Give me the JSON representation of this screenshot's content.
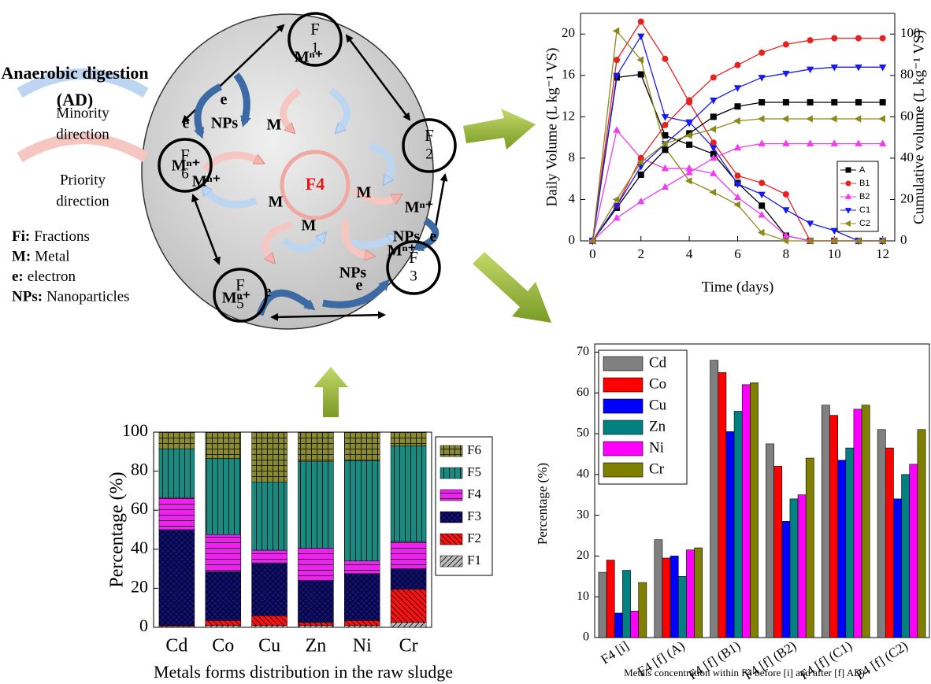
{
  "chart_data": [
    {
      "type": "line",
      "xlabel": "Time (days)",
      "ylabel": "Daily Volume (L kg⁻¹ VS)",
      "y2label": "Cumulative volume (L kg⁻¹ VS)",
      "x": [
        0,
        1,
        2,
        3,
        4,
        5,
        6,
        7,
        8,
        9,
        10,
        11,
        12
      ],
      "xlim": [
        -0.5,
        12.5
      ],
      "xticks": [
        0,
        2,
        4,
        6,
        8,
        10,
        12
      ],
      "ylim": [
        0,
        22
      ],
      "yticks": [
        0,
        4,
        8,
        12,
        16,
        20
      ],
      "y2lim": [
        0,
        110
      ],
      "y2ticks": [
        0,
        20,
        40,
        60,
        80,
        100
      ],
      "series": [
        {
          "name": "A",
          "color": "#000000",
          "marker": "square",
          "values": [
            0,
            15.8,
            16.1,
            10.2,
            9.3,
            8.4,
            5.6,
            3.4,
            0.5,
            0,
            0,
            0,
            0
          ]
        },
        {
          "name": "B1",
          "color": "#e8201e",
          "marker": "circle",
          "values": [
            0,
            17.5,
            21.2,
            17.6,
            13.4,
            9.5,
            6.3,
            5.6,
            4.5,
            0,
            0,
            0,
            0
          ]
        },
        {
          "name": "B2",
          "color": "#f03cf0",
          "marker": "triangle-up",
          "values": [
            0,
            10.7,
            8,
            7,
            7,
            6.5,
            4.2,
            2.5,
            0.5,
            0,
            0,
            0,
            0
          ]
        },
        {
          "name": "C1",
          "color": "#1a1aee",
          "marker": "triangle-down",
          "values": [
            0,
            16,
            19.8,
            12,
            11.5,
            9,
            5.5,
            4.5,
            3,
            1.7,
            1,
            0,
            0
          ]
        },
        {
          "name": "C2",
          "color": "#8a8a1a",
          "marker": "triangle-left",
          "values": [
            0,
            20.3,
            17.5,
            9,
            5.8,
            4.7,
            3.5,
            0.8,
            0,
            0,
            0,
            0,
            0
          ]
        },
        {
          "color": "#000000",
          "marker": "square",
          "axis": "y2",
          "values": [
            0,
            16,
            32,
            44,
            52,
            60,
            65,
            67,
            67,
            67,
            67,
            67,
            67
          ]
        },
        {
          "color": "#e8201e",
          "marker": "circle",
          "axis": "y2",
          "values": [
            0,
            17,
            40,
            56,
            68,
            79,
            85,
            91,
            95,
            97,
            98,
            98,
            98
          ]
        },
        {
          "color": "#f03cf0",
          "marker": "triangle-up",
          "axis": "y2",
          "values": [
            0,
            11,
            19,
            26,
            33,
            40,
            45,
            47,
            47,
            47,
            47,
            47,
            47
          ]
        },
        {
          "color": "#1a1aee",
          "marker": "triangle-down",
          "axis": "y2",
          "values": [
            0,
            17,
            36,
            47,
            57,
            68,
            74,
            79,
            81,
            83,
            84,
            84,
            84
          ]
        },
        {
          "color": "#8a8a1a",
          "marker": "triangle-left",
          "axis": "y2",
          "values": [
            0,
            20,
            38,
            47,
            51,
            54,
            58,
            59,
            59,
            59,
            59,
            59,
            59
          ]
        }
      ]
    },
    {
      "type": "stacked_bar",
      "ylabel": "Percentage (%)",
      "xlabel": "Metals forms distribution in the raw sludge",
      "categories": [
        "Cd",
        "Co",
        "Cu",
        "Zn",
        "Ni",
        "Cr"
      ],
      "ylim": [
        0,
        100
      ],
      "yticks": [
        0,
        20,
        40,
        60,
        80,
        100
      ],
      "series": [
        {
          "name": "F1",
          "color": "#bbbbbb",
          "hatch": "//",
          "values": [
            0.5,
            1,
            1,
            1,
            1,
            2.5
          ]
        },
        {
          "name": "F2",
          "color": "#ff1010",
          "hatch": "\\\\",
          "values": [
            0.5,
            2.5,
            5,
            1.5,
            2.5,
            17
          ]
        },
        {
          "name": "F3",
          "color": "#101080",
          "hatch": "x",
          "values": [
            49,
            25,
            27,
            21.5,
            24,
            10.5
          ]
        },
        {
          "name": "F4",
          "color": "#ee22ee",
          "hatch": "-",
          "values": [
            16.5,
            19,
            6.5,
            16.5,
            6.5,
            14
          ]
        },
        {
          "name": "F5",
          "color": "#1a8a80",
          "hatch": "|",
          "values": [
            25,
            39,
            35,
            44.5,
            51.5,
            49
          ]
        },
        {
          "name": "F6",
          "color": "#8a8a30",
          "hatch": "+",
          "values": [
            8.5,
            13.5,
            25.5,
            15,
            14.5,
            7
          ]
        }
      ]
    },
    {
      "type": "bar",
      "ylabel": "Percentage (%)",
      "xlabel": "Metals concentration within F4  before [i] and after [f] AD)",
      "categories": [
        "F4 [i]",
        "F4 [f] (A)",
        "F4 [f] (B1)",
        "F4 [f] (B2)",
        "F4 [f] (C1)",
        "F4 [f] (C2)"
      ],
      "ylim": [
        0,
        72
      ],
      "yticks": [
        0,
        10,
        20,
        30,
        40,
        50,
        60,
        70
      ],
      "series": [
        {
          "name": "Cd",
          "color": "#808080",
          "values": [
            16,
            24,
            68,
            47.5,
            57,
            51
          ]
        },
        {
          "name": "Co",
          "color": "#ff0000",
          "values": [
            19,
            19.5,
            65,
            42,
            54.5,
            46.5
          ]
        },
        {
          "name": "Cu",
          "color": "#0000ff",
          "values": [
            6,
            20,
            50.5,
            28.5,
            43.5,
            34
          ]
        },
        {
          "name": "Zn",
          "color": "#008080",
          "values": [
            16.5,
            15,
            55.5,
            34,
            46.5,
            40
          ]
        },
        {
          "name": "Ni",
          "color": "#ff00ff",
          "values": [
            6.5,
            21.5,
            62,
            35,
            56,
            42.5
          ]
        },
        {
          "name": "Cr",
          "color": "#808000",
          "values": [
            13.5,
            22,
            62.5,
            44,
            57,
            51
          ]
        }
      ]
    }
  ],
  "diagram": {
    "title": [
      "Anaerobic digestion",
      "(AD)"
    ],
    "directions": [
      [
        "Minority",
        "direction"
      ],
      [
        "Priority",
        "direction"
      ]
    ],
    "definitions": [
      {
        "term": "Fi:",
        "meaning": "Fractions"
      },
      {
        "term": "M:",
        "meaning": "Metal"
      },
      {
        "term": "e:",
        "meaning": "electron"
      },
      {
        "term": "NPs:",
        "meaning": "Nanoparticles"
      }
    ],
    "center": "F4",
    "nodes": [
      [
        "F",
        "1"
      ],
      [
        "F",
        "2"
      ],
      [
        "F",
        "3"
      ],
      [
        "F",
        "5"
      ],
      [
        "F",
        "6"
      ]
    ],
    "labels": [
      "Mⁿ⁺",
      "Mⁿ⁺",
      "Mⁿ⁺",
      "Mⁿ⁺",
      "Mⁿ⁺",
      "Mⁿ⁺",
      "M",
      "M",
      "M",
      "M",
      "NPs",
      "NPs",
      "NPs",
      "e",
      "e",
      "e",
      "e",
      "e"
    ]
  }
}
